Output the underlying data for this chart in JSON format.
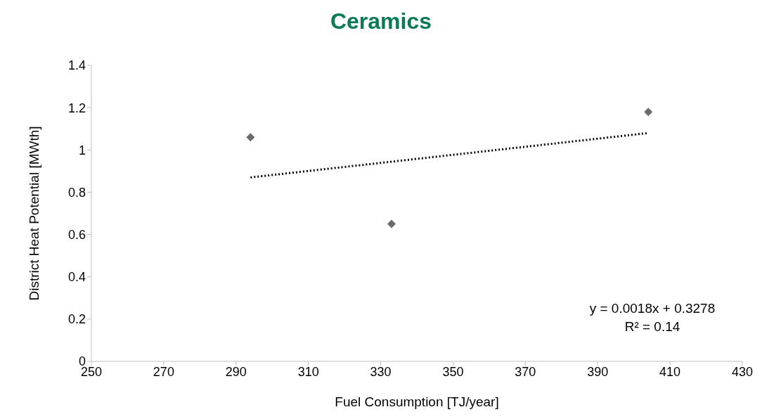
{
  "chart_data": {
    "type": "scatter",
    "title": "Ceramics",
    "xlabel": "Fuel Consumption [TJ/year]",
    "ylabel": "District Heat Potential [MWth]",
    "xlim": [
      250,
      430
    ],
    "xticks": [
      250,
      270,
      290,
      310,
      330,
      350,
      370,
      390,
      410,
      430
    ],
    "ylim": [
      0,
      1.4
    ],
    "yticks": [
      0,
      0.2,
      0.4,
      0.6,
      0.8,
      1,
      1.2,
      1.4
    ],
    "marker": "diamond",
    "series": [
      {
        "color": "#6b6b6b",
        "x": [
          294,
          333,
          404
        ],
        "values": [
          1.06,
          0.65,
          1.18
        ]
      },
      {
        "type": "line",
        "color": "#000000",
        "x": [
          294,
          404
        ],
        "values": [
          0.87,
          1.08
        ],
        "marker": "none",
        "line_style": "dotted"
      }
    ],
    "annotations": [
      "y = 0.0018x + 0.3278",
      "R² = 0.14"
    ]
  }
}
